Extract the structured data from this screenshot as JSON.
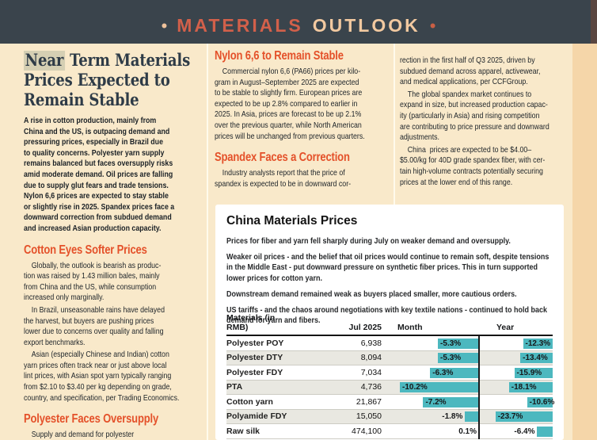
{
  "masthead": {
    "bullet": "•",
    "title_primary": "MATERIALS",
    "title_secondary": "OUTLOOK"
  },
  "colors": {
    "masthead_bg": "#3a444c",
    "title_primary": "#d2604a",
    "title_secondary": "#f2c9a0",
    "page_bg": "#f9e9ca",
    "edge_strip": "#f5d6a9",
    "section_heading": "#e4512a",
    "headline": "#2e3b47",
    "highlight": "#d5cfb3",
    "bar_teal": "#4cb8bf",
    "alt_row": "#e9e8e1"
  },
  "left_column": {
    "headline_highlight": "Near",
    "headline_rest": " Term Materials Prices Expected to Remain Stable",
    "standfirst": [
      "A rise in cotton production, mainly from",
      "China and the US, is outpacing demand and",
      "pressuring prices, especially in Brazil due",
      "to quality concerns. Polyester yarn supply",
      "remains balanced but faces oversupply risks",
      "amid moderate demand. Oil prices are falling",
      "due to supply glut fears and trade tensions.",
      "Nylon 6,6 prices are expected to stay stable",
      "or slightly rise in 2025. Spandex prices face a",
      "downward correction from subdued demand",
      "and increased Asian production capacity."
    ],
    "sections": [
      {
        "heading": "Cotton Eyes Softer Prices",
        "paragraphs": [
          [
            "    Globally, the outlook is bearish as produc-",
            "tion was raised by 1.43 million bales, mainly",
            "from China and the US, while consumption",
            "increased only marginally."
          ],
          [
            "    In Brazil, unseasonable rains have delayed",
            "the harvest, but buyers are pushing prices",
            "lower due to concerns over quality and falling",
            "export benchmarks."
          ],
          [
            "    Asian (especially Chinese and Indian) cotton",
            "yarn prices often track near or just above local",
            "lint prices, with Asian spot yarn typically ranging",
            "from $2.10 to $3.40 per kg depending on grade,",
            "country, and specification, per Trading Economics."
          ]
        ]
      },
      {
        "heading": "Polyester Faces Oversupply",
        "paragraphs": [
          [
            "    Supply and demand for polyester"
          ]
        ]
      }
    ]
  },
  "middle_column": {
    "sections": [
      {
        "heading": "Nylon 6,6 to Remain Stable",
        "paragraphs": [
          [
            "    Commercial nylon 6,6 (PA66) prices per kilo-",
            "gram in August–September 2025 are expected",
            "to be stable to slightly firm. European prices are",
            "expected to be up 2.8% compared to earlier in",
            "2025. In Asia, prices are forecast to be up 2.1%",
            "over the previous quarter, while North American",
            "prices will be unchanged from previous quarters."
          ]
        ]
      },
      {
        "heading": "Spandex Faces a Correction",
        "paragraphs": [
          [
            "    Industry analysts report that the price of",
            "spandex is expected to be in downward cor-"
          ]
        ]
      }
    ]
  },
  "right_column": {
    "paragraphs": [
      [
        "rection in the first half of Q3 2025, driven by",
        "subdued demand across apparel, activewear,",
        "and medical applications, per CCFGroup."
      ],
      [
        "    The global spandex market continues to",
        "expand in size, but increased production capac-",
        "ity (particularly in Asia) and rising competition",
        "are contributing to price pressure and downward",
        "adjustments."
      ],
      [
        "    China  prices are expected to be $4.00–",
        "$5.00/kg for 40D grade spandex fiber, with cer-",
        "tain high-volume contracts potentially securing",
        "prices at the lower end of this range."
      ]
    ]
  },
  "panel": {
    "title": "China Materials Prices",
    "paragraphs": [
      "Prices for fiber and yarn fell sharply during July on weaker demand and oversupply.",
      "Weaker oil prices - and the belief that oil prices would continue to remain soft, despite tensions in the Middle East - put downward pressure on synthetic fiber prices. This in turn supported lower prices for cotton yarn.",
      "Downstream demand remained weak as buyers placed smaller, more cautious orders.",
      "US tariffs - and the chaos around negotiations with key textile nations - continued to hold back demand for yarn and fibers."
    ],
    "table": {
      "columns": [
        "Materials (in\nRMB)",
        "Jul 2025",
        "Month",
        "Year"
      ],
      "rows": [
        {
          "name": "Polyester POY",
          "value": "6,938",
          "month_pct": -5.3,
          "year_pct": -12.3
        },
        {
          "name": "Polyester DTY",
          "value": "8,094",
          "month_pct": -5.3,
          "year_pct": -13.4
        },
        {
          "name": "Polyester FDY",
          "value": "7,034",
          "month_pct": -6.3,
          "year_pct": -15.9
        },
        {
          "name": "PTA",
          "value": "4,736",
          "month_pct": -10.2,
          "year_pct": -18.1
        },
        {
          "name": "Cotton yarn",
          "value": "21,867",
          "month_pct": -7.2,
          "year_pct": -10.6
        },
        {
          "name": "Polyamide FDY",
          "value": "15,050",
          "month_pct": -1.8,
          "year_pct": -23.7
        },
        {
          "name": "Raw silk",
          "value": "474,100",
          "month_pct": 0.1,
          "year_pct": -6.4
        }
      ]
    }
  }
}
